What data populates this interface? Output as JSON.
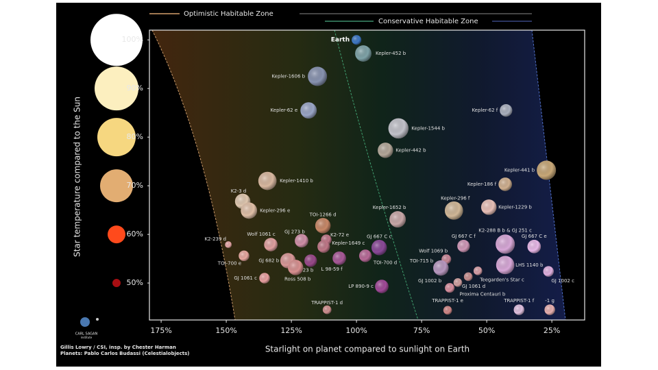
{
  "chart_data": {
    "type": "scatter",
    "annotations": [
      "Optimistic Habitable Zone",
      "Conservative Habitable Zone"
    ],
    "x_label": "Starlight on planet compared to sunlight on Earth",
    "y_label": "Star temperature compared to the Sun",
    "xlim": [
      179.5,
      12.4
    ],
    "ylim": [
      42.4,
      102
    ],
    "xticks": [
      {
        "value": 175,
        "label": "175%"
      },
      {
        "value": 150,
        "label": "150%"
      },
      {
        "value": 125,
        "label": "125%"
      },
      {
        "value": 100,
        "label": "100%"
      },
      {
        "value": 75,
        "label": "75%"
      },
      {
        "value": 50,
        "label": "50%"
      },
      {
        "value": 25,
        "label": "25%"
      }
    ],
    "yticks": [
      {
        "value": 50,
        "label": "50%"
      },
      {
        "value": 60,
        "label": "60%"
      },
      {
        "value": 70,
        "label": "70%"
      },
      {
        "value": 80,
        "label": "80%"
      },
      {
        "value": 90,
        "label": "90%"
      },
      {
        "value": 100,
        "label": "100%"
      }
    ],
    "ytick_colors": [
      "#a80e12",
      "#ff4a1c",
      "#e2ad72",
      "#f6d780",
      "#fcefbf",
      "#ffffff"
    ],
    "labels": [
      "Earth",
      "Kepler-452 b",
      "Kepler-1606 b",
      "Kepler-62 e",
      "Kepler-62 f",
      "Kepler-1544 b",
      "Kepler-442 b",
      "Kepler-441 b",
      "Kepler-186 f",
      "Kepler-1410 b",
      "K2-3 d",
      "Kepler-296 e",
      "Kepler-296 f",
      "Kepler-1229 b",
      "Kepler-1652 b",
      "TOI-1266 d",
      "K2-288 B b & GJ 251 c",
      "GJ 667 C e",
      "GJ 667 C f",
      "GJ 667 C c",
      "K2-72 e",
      "Kepler-1649 c",
      "GJ 273 b",
      "Wolf 1061 c",
      "K2-239 d",
      "TOI-700 e",
      "GJ 682 b",
      "GJ 3323 b",
      "Ross 508 b",
      "L 98-59 f",
      "TOI-700 d",
      "Wolf 1069 b",
      "TOI-715 b",
      "GJ 1002 b",
      "Teegarden's Star c",
      "GJ 1061 d",
      "Proxima Centauri b",
      "LHS 1140 b",
      "GJ 1002 c",
      "LP 890-9 c",
      "GJ 1061 c",
      "TRAPPIST-1 d",
      "TRAPPIST-1 e",
      "TRAPPIST-1 f",
      "-1 g"
    ],
    "x": [
      100,
      97.4,
      115.0,
      118.4,
      42.6,
      83.9,
      88.9,
      27.1,
      42.9,
      134.2,
      143.7,
      141.3,
      62.6,
      49.2,
      84.2,
      112.9,
      42.9,
      31.8,
      58.9,
      91.3,
      111.6,
      112.6,
      121.1,
      132.9,
      149.2,
      143.2,
      126.3,
      117.6,
      123.4,
      106.6,
      96.6,
      65.5,
      67.6,
      64.2,
      53.4,
      57.1,
      61.1,
      42.9,
      26.3,
      90.3,
      135.3,
      111.3,
      65.0,
      37.6,
      25.8
    ],
    "values": [
      100,
      97.2,
      92.5,
      85.5,
      85.5,
      81.8,
      77.3,
      73.2,
      70.3,
      71.0,
      66.8,
      64.9,
      64.9,
      65.6,
      63.1,
      61.8,
      58.0,
      57.5,
      57.6,
      57.3,
      58.9,
      57.5,
      58.7,
      57.9,
      57.9,
      55.6,
      54.6,
      54.6,
      53.2,
      55.1,
      55.6,
      54.9,
      53.1,
      49.0,
      52.5,
      51.3,
      50.1,
      53.7,
      52.4,
      49.3,
      51.0,
      44.5,
      44.4,
      44.5,
      44.5
    ],
    "sizes": [
      1.0,
      1.7,
      2.0,
      1.7,
      1.3,
      2.1,
      1.6,
      2.0,
      1.4,
      1.9,
      1.6,
      1.7,
      1.9,
      1.6,
      1.7,
      1.6,
      2.0,
      1.4,
      1.3,
      1.6,
      1.1,
      1.3,
      1.4,
      1.4,
      0.7,
      1.1,
      1.6,
      1.3,
      1.6,
      1.4,
      1.3,
      1.0,
      1.6,
      1.0,
      0.9,
      0.9,
      0.9,
      1.9,
      1.1,
      1.4,
      1.1,
      0.9,
      0.9,
      1.1,
      1.1
    ],
    "colors": [
      "#3f78c4",
      "#7fa3a8",
      "#8893b0",
      "#9aa6c6",
      "#aab0bf",
      "#c2c2ca",
      "#b4a89a",
      "#c8a878",
      "#d0b090",
      "#d8b8a0",
      "#e0c8b0",
      "#e0c0a8",
      "#d0b898",
      "#e8c0b8",
      "#c8a8a8",
      "#c88868",
      "#d8a8d8",
      "#e8b8e8",
      "#d098b8",
      "#8a4a98",
      "#c0788a",
      "#c07888",
      "#d090a8",
      "#e0a0a0",
      "#e8a8a8",
      "#e8a8a0",
      "#d89898",
      "#9a4a8a",
      "#d89090",
      "#a85a98",
      "#b86a98",
      "#c88898",
      "#b898c0",
      "#d890a0",
      "#d8a0a8",
      "#c89090",
      "#d0a0a0",
      "#d8a8d8",
      "#e0b0e0",
      "#a04a98",
      "#e8a0a0",
      "#d09090",
      "#d08888",
      "#e0c0e0",
      "#e8b0b0"
    ],
    "credits": [
      "Gillis Lowry / CSI, insp. by Chester Harman",
      "Planets: Pablo Carlos Budassi (Celestialobjects)"
    ],
    "logo": [
      "CARL SAGAN",
      "institute"
    ]
  }
}
